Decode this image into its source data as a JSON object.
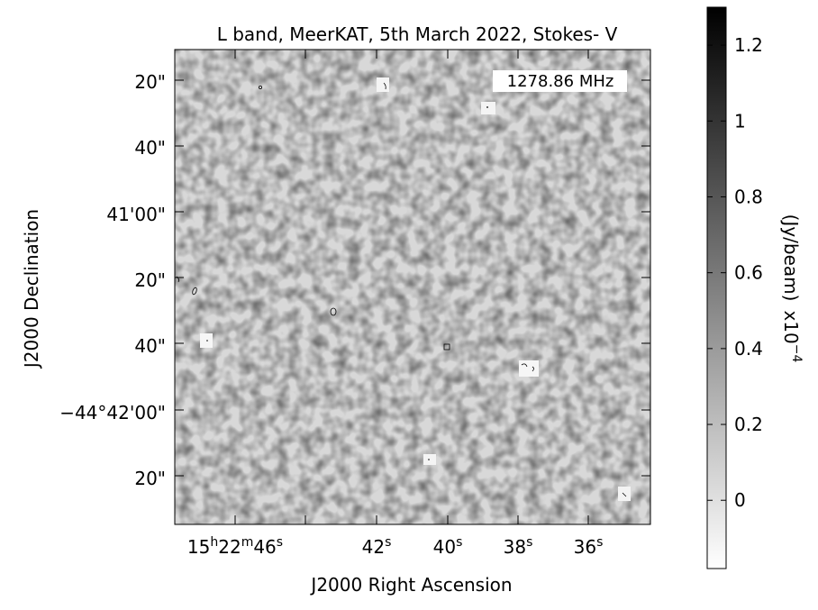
{
  "chart_data": {
    "type": "heatmap",
    "title": "L band, MeerKAT, 5th March 2022, Stokes- V",
    "frequency_label": "1278.86 MHz",
    "xlabel": "J2000 Right Ascension",
    "ylabel": "J2000 Declination",
    "colormap": "grey (white to black)",
    "x_ticks": [
      {
        "pre": "15",
        "h": "h",
        "mid": "22",
        "m": "m",
        "sec": "46",
        "s": "s"
      },
      {
        "sec": "42",
        "s": "s"
      },
      {
        "sec": "40",
        "s": "s"
      },
      {
        "sec": "38",
        "s": "s"
      },
      {
        "sec": "36",
        "s": "s"
      }
    ],
    "y_ticks": [
      {
        "label": "20\""
      },
      {
        "label": "40\""
      },
      {
        "label": "41'00\""
      },
      {
        "label": "20\""
      },
      {
        "label": "40\""
      },
      {
        "label": "−44°42'00\""
      },
      {
        "label": "20\""
      }
    ],
    "colorbar": {
      "label": "(Jy/beam)",
      "scale_base": "x10",
      "scale_exp": "−4",
      "ticks": [
        "0",
        "0.2",
        "0.4",
        "0.6",
        "0.8",
        "1",
        "1.2"
      ],
      "tick_values": [
        0,
        0.2,
        0.4,
        0.6,
        0.8,
        1.0,
        1.2
      ],
      "range": [
        -0.18,
        1.3
      ]
    },
    "grid": false
  }
}
